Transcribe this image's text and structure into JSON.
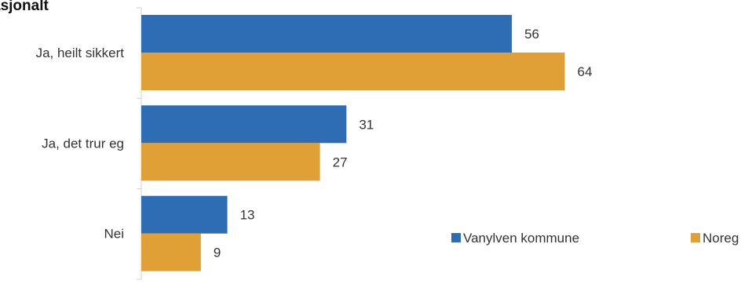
{
  "chart_data": {
    "type": "bar",
    "orientation": "horizontal",
    "title": "asjonalt",
    "categories": [
      "Ja, heilt sikkert",
      "Ja, det trur eg",
      "Nei"
    ],
    "series": [
      {
        "name": "Vanylven kommune",
        "values": [
          56,
          31,
          13
        ],
        "color": "#2e6db4"
      },
      {
        "name": "Noreg",
        "values": [
          64,
          27,
          9
        ],
        "color": "#e0a035"
      }
    ],
    "xlim": [
      0,
      100
    ],
    "grid": false,
    "legend": "bottom-right"
  }
}
